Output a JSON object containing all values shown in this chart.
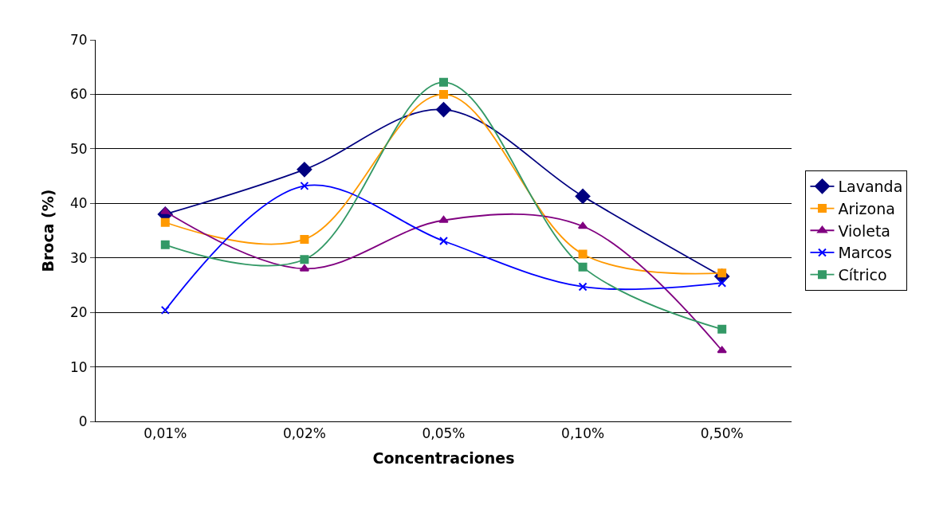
{
  "chart_data": {
    "type": "line",
    "xlabel": "Concentraciones",
    "ylabel": "Broca (%)",
    "categories": [
      "0,01%",
      "0,02%",
      "0,05%",
      "0,10%",
      "0,50%"
    ],
    "series": [
      {
        "name": "Lavanda",
        "color": "#000080",
        "marker": "diamond",
        "values": [
          38.0,
          46.2,
          57.2,
          41.3,
          26.6
        ]
      },
      {
        "name": "Arizona",
        "color": "#ff9900",
        "marker": "square",
        "values": [
          36.5,
          33.4,
          60.0,
          30.7,
          27.2
        ]
      },
      {
        "name": "Violeta",
        "color": "#800080",
        "marker": "triangle",
        "values": [
          38.5,
          28.0,
          36.9,
          35.8,
          13.0
        ]
      },
      {
        "name": "Marcos",
        "color": "#0000ff",
        "marker": "cross",
        "values": [
          20.4,
          43.2,
          33.1,
          24.7,
          25.4
        ]
      },
      {
        "name": "Cítrico",
        "color": "#339966",
        "marker": "square",
        "values": [
          32.4,
          29.7,
          62.2,
          28.3,
          16.9
        ]
      }
    ],
    "ylim": [
      0,
      70
    ],
    "yticks": [
      0,
      10,
      20,
      30,
      40,
      50,
      60,
      70
    ],
    "grid": "y",
    "legend": "right",
    "line_style": "solid"
  }
}
